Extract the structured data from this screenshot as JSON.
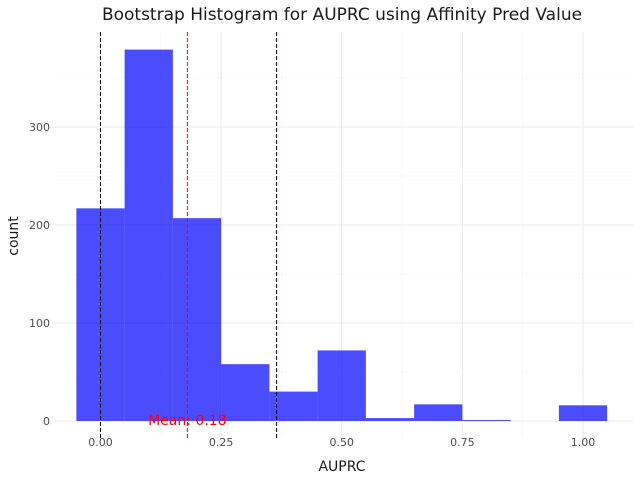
{
  "chart_data": {
    "type": "bar",
    "title": "Bootstrap Histogram for AUPRC using Affinity Pred Value",
    "xlabel": "AUPRC",
    "ylabel": "count",
    "xlim": [
      -0.05,
      1.05
    ],
    "ylim": [
      0,
      390
    ],
    "x_ticks": [
      0.0,
      0.25,
      0.5,
      0.75,
      1.0
    ],
    "x_tick_labels": [
      "0.00",
      "0.25",
      "0.50",
      "0.75",
      "1.00"
    ],
    "y_ticks": [
      0,
      100,
      200,
      300
    ],
    "y_tick_labels": [
      "0",
      "100",
      "200",
      "300"
    ],
    "grid": true,
    "bar_color": "#0000ff",
    "bar_opacity": 0.7,
    "bins": [
      {
        "x0": -0.05,
        "x1": 0.05,
        "count": 217
      },
      {
        "x0": 0.05,
        "x1": 0.15,
        "count": 379
      },
      {
        "x0": 0.15,
        "x1": 0.25,
        "count": 207
      },
      {
        "x0": 0.25,
        "x1": 0.35,
        "count": 58
      },
      {
        "x0": 0.35,
        "x1": 0.45,
        "count": 30
      },
      {
        "x0": 0.45,
        "x1": 0.55,
        "count": 72
      },
      {
        "x0": 0.55,
        "x1": 0.65,
        "count": 3
      },
      {
        "x0": 0.65,
        "x1": 0.75,
        "count": 17
      },
      {
        "x0": 0.75,
        "x1": 0.85,
        "count": 1
      },
      {
        "x0": 0.85,
        "x1": 0.95,
        "count": 0
      },
      {
        "x0": 0.95,
        "x1": 1.05,
        "count": 16
      }
    ],
    "vlines": [
      {
        "x": 0.0,
        "color": "#000000",
        "style": "dashed"
      },
      {
        "x": 0.365,
        "color": "#000000",
        "style": "dashed"
      },
      {
        "x": 0.18,
        "color": "#ff0000",
        "style": "dashed"
      }
    ],
    "annotation": {
      "text": "Mean: 0.18",
      "x": 0.18,
      "y": 0,
      "color": "#ff0000"
    }
  }
}
